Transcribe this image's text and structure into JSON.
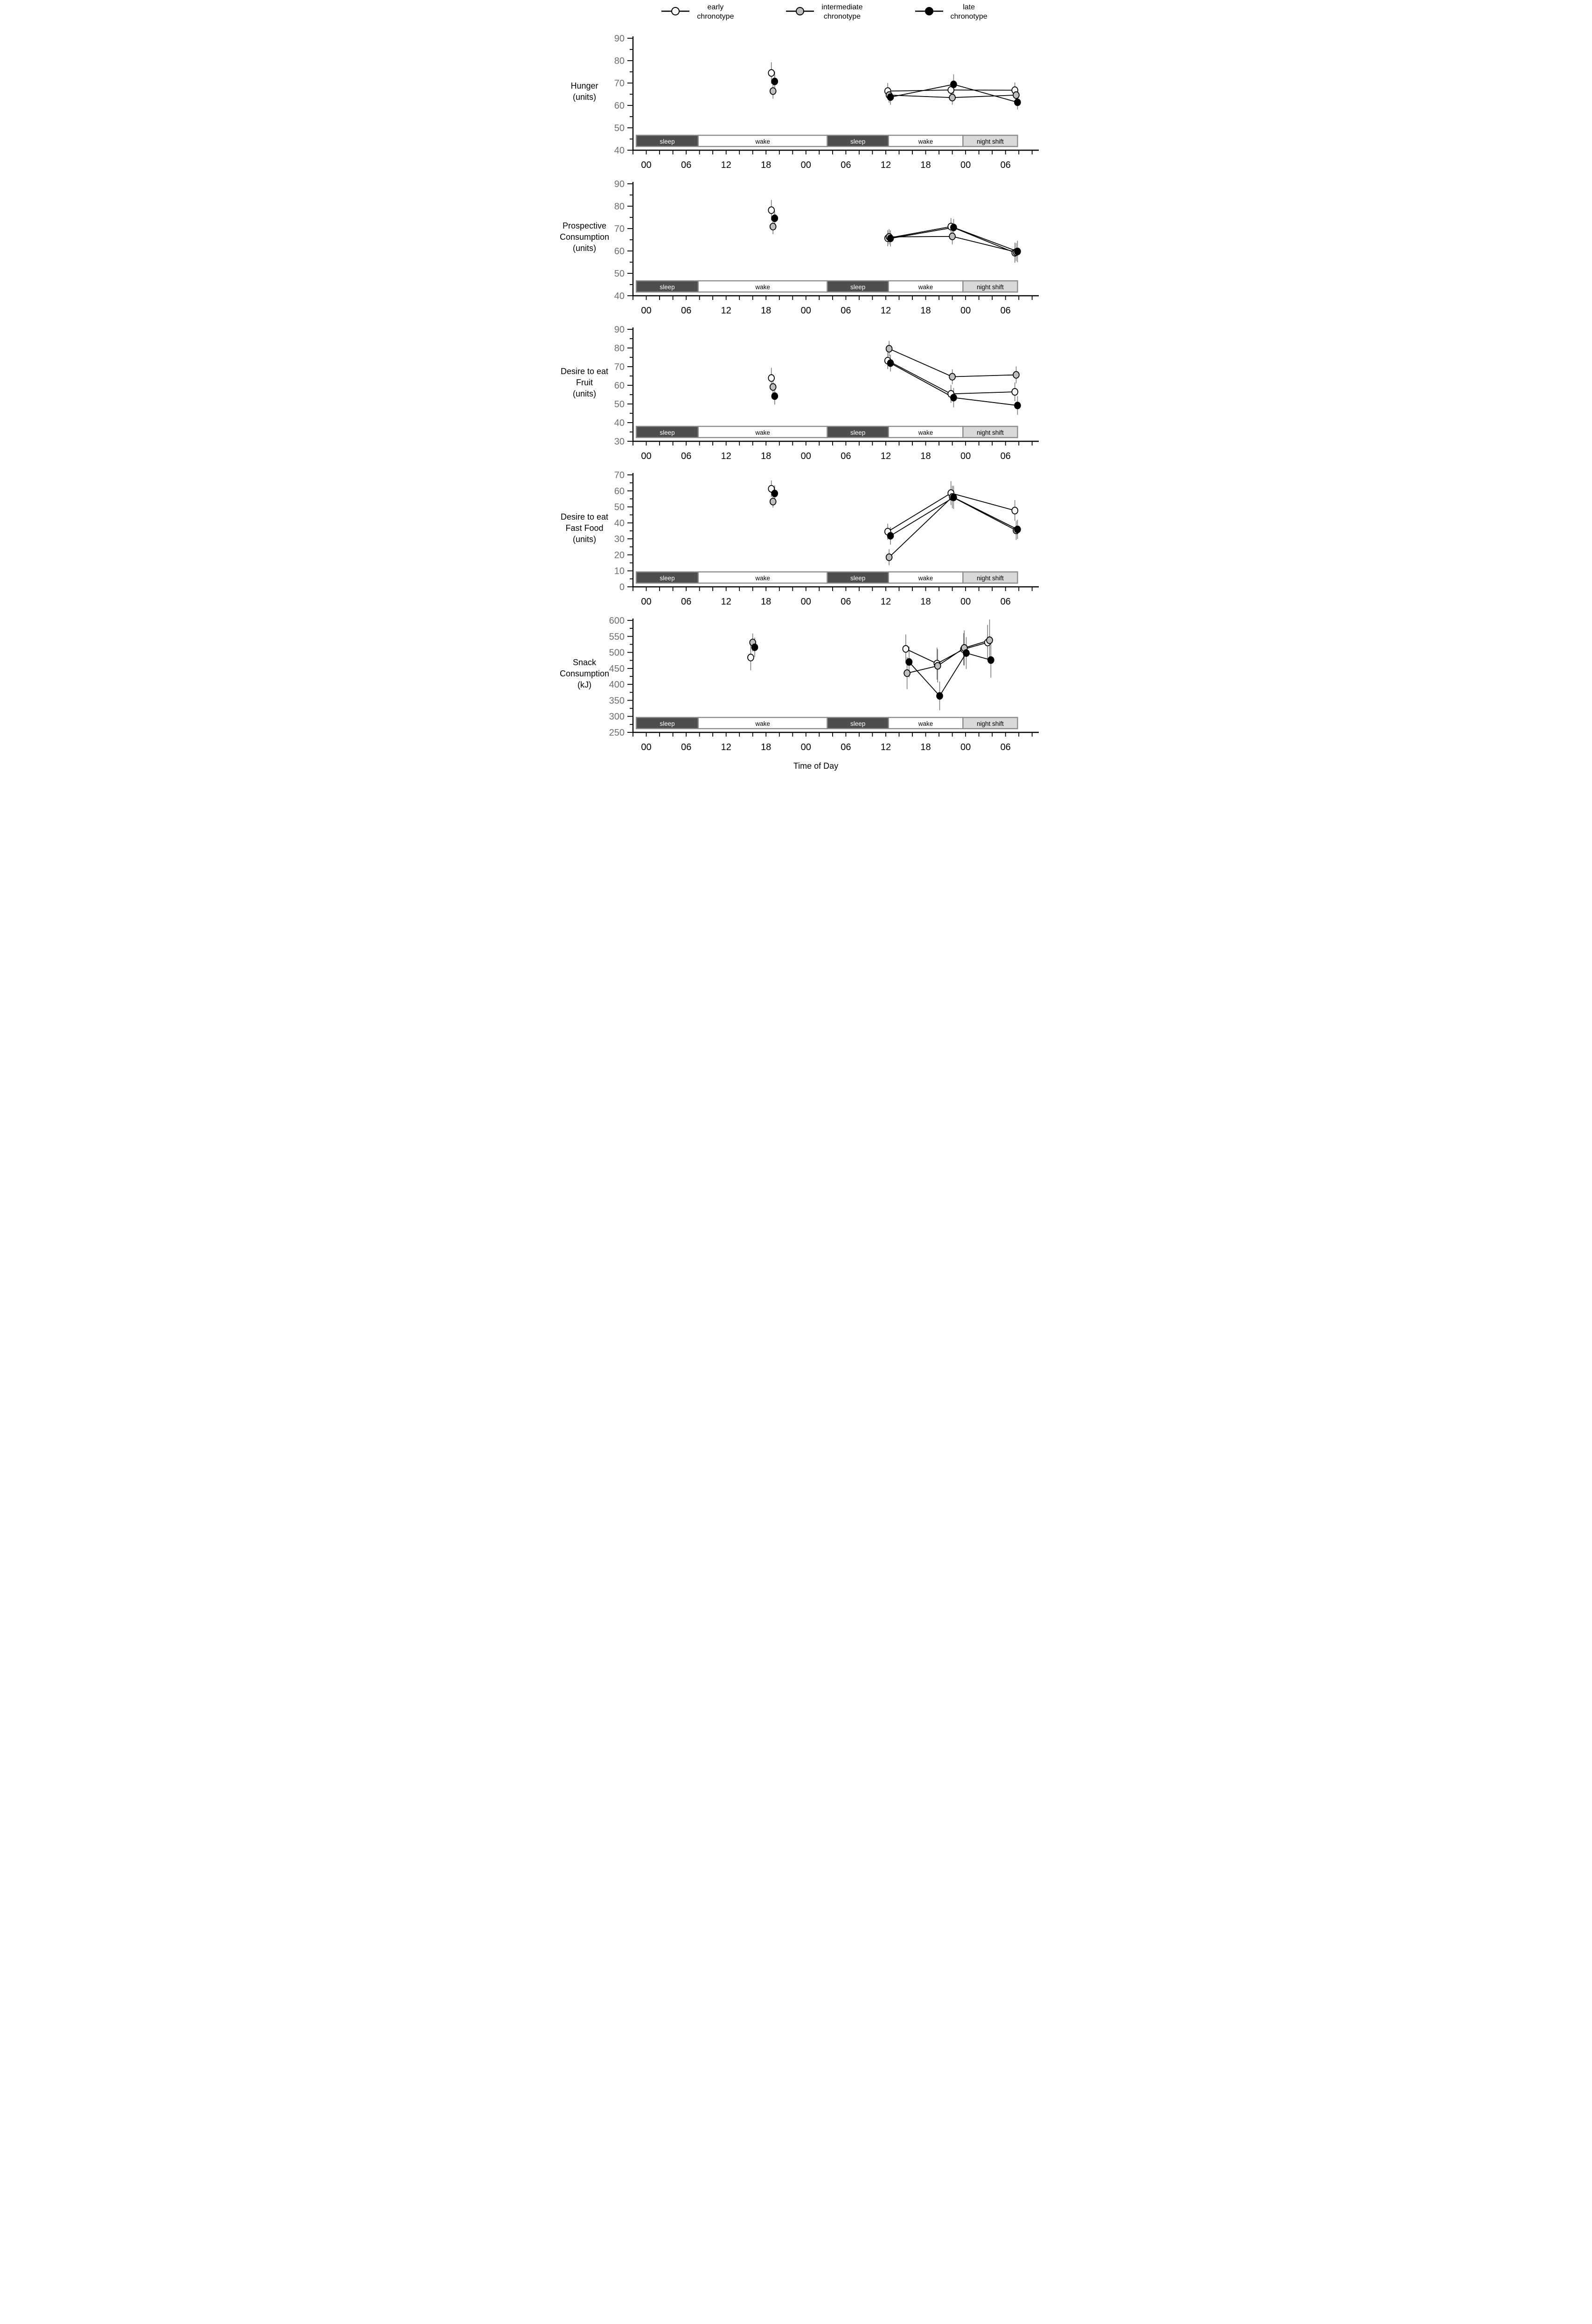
{
  "figure": {
    "xlabel": "Time of Day",
    "x_tick_labels": [
      "00",
      "06",
      "12",
      "18",
      "00",
      "06",
      "12",
      "18",
      "00",
      "06"
    ],
    "x_tick_hours": [
      0,
      6,
      12,
      18,
      24,
      30,
      36,
      42,
      48,
      54
    ],
    "xlim": [
      -2,
      59
    ],
    "x_minor_step": 2,
    "axis_color": "#000000",
    "tick_label_color": "#6e6e6e",
    "error_bar_color": "#7d7d7d",
    "legend": [
      {
        "id": "early",
        "line1": "early",
        "line2": "chronotype",
        "fill": "#ffffff"
      },
      {
        "id": "intermediate",
        "line1": "intermediate",
        "line2": "chronotype",
        "fill": "#bfbfbf"
      },
      {
        "id": "late",
        "line1": "late",
        "line2": "chronotype",
        "fill": "#000000"
      }
    ],
    "periods": [
      {
        "label": "sleep",
        "kind": "sleep",
        "start": -1.5,
        "end": 7.8
      },
      {
        "label": "wake",
        "kind": "wake",
        "start": 7.8,
        "end": 27.2
      },
      {
        "label": "sleep",
        "kind": "sleep",
        "start": 27.2,
        "end": 36.4
      },
      {
        "label": "wake",
        "kind": "wake",
        "start": 36.4,
        "end": 47.6
      },
      {
        "label": "night shift",
        "kind": "night",
        "start": 47.6,
        "end": 55.8
      }
    ],
    "period_styles": {
      "sleep": {
        "fill": "#4d4d4d",
        "text": "#ffffff"
      },
      "wake": {
        "fill": "#ffffff",
        "text": "#000000"
      },
      "night": {
        "fill": "#d9d9d9",
        "text": "#000000"
      }
    }
  },
  "chart_data": [
    {
      "type": "line",
      "id": "hunger",
      "title": [
        "Hunger",
        "(units)"
      ],
      "ylim": [
        40,
        90
      ],
      "ymajor": 10,
      "yminor": 5,
      "series": [
        {
          "name": "early chronotype",
          "fill": "#ffffff",
          "points": [
            [
              18.8,
              74.5,
              4.8
            ],
            [
              36.3,
              66.4,
              3.6
            ],
            [
              45.8,
              66.9,
              3.4
            ],
            [
              55.4,
              66.8,
              3.4
            ]
          ],
          "connect_from": 1
        },
        {
          "name": "intermediate chronotype",
          "fill": "#bfbfbf",
          "points": [
            [
              19.05,
              66.4,
              3.4
            ],
            [
              36.5,
              64.6,
              3.4
            ],
            [
              46.0,
              63.5,
              3.2
            ],
            [
              55.6,
              64.6,
              3.4
            ]
          ],
          "connect_from": 1
        },
        {
          "name": "late chronotype",
          "fill": "#000000",
          "points": [
            [
              19.3,
              70.7,
              4.5
            ],
            [
              36.7,
              63.7,
              3.4
            ],
            [
              46.2,
              69.4,
              4.5
            ],
            [
              55.8,
              61.4,
              3.2
            ]
          ],
          "connect_from": 1
        }
      ]
    },
    {
      "type": "line",
      "id": "prospective-consumption",
      "title": [
        "Prospective",
        "Consumption",
        "(units)"
      ],
      "ylim": [
        40,
        90
      ],
      "ymajor": 10,
      "yminor": 5,
      "series": [
        {
          "name": "early chronotype",
          "fill": "#ffffff",
          "points": [
            [
              18.8,
              78.2,
              4.6
            ],
            [
              36.3,
              65.7,
              3.6
            ],
            [
              45.8,
              70.9,
              3.8
            ],
            [
              55.4,
              59.2,
              4.5
            ]
          ],
          "connect_from": 1
        },
        {
          "name": "intermediate chronotype",
          "fill": "#bfbfbf",
          "points": [
            [
              19.05,
              70.9,
              3.4
            ],
            [
              36.5,
              66.3,
              3.4
            ],
            [
              46.0,
              66.5,
              3.6
            ],
            [
              55.6,
              59.5,
              4.0
            ]
          ],
          "connect_from": 1
        },
        {
          "name": "late chronotype",
          "fill": "#000000",
          "points": [
            [
              19.3,
              74.6,
              3.2
            ],
            [
              36.7,
              65.6,
              3.6
            ],
            [
              46.2,
              70.5,
              3.8
            ],
            [
              55.8,
              59.8,
              4.8
            ]
          ],
          "connect_from": 1
        }
      ]
    },
    {
      "type": "line",
      "id": "desire-fruit",
      "title": [
        "Desire to eat",
        "Fruit",
        "(units)"
      ],
      "ylim": [
        30,
        90
      ],
      "ymajor": 10,
      "yminor": 5,
      "series": [
        {
          "name": "early chronotype",
          "fill": "#ffffff",
          "points": [
            [
              18.8,
              63.9,
              5.5
            ],
            [
              36.3,
              73.2,
              4.5
            ],
            [
              45.8,
              55.4,
              4.8
            ],
            [
              55.4,
              56.5,
              5.0
            ]
          ],
          "connect_from": 1
        },
        {
          "name": "intermediate chronotype",
          "fill": "#bfbfbf",
          "points": [
            [
              19.05,
              59.1,
              3.6
            ],
            [
              36.5,
              79.6,
              4.2
            ],
            [
              46.0,
              64.6,
              4.0
            ],
            [
              55.6,
              65.6,
              4.5
            ]
          ],
          "connect_from": 1
        },
        {
          "name": "late chronotype",
          "fill": "#000000",
          "points": [
            [
              19.3,
              54.2,
              4.5
            ],
            [
              36.7,
              71.9,
              4.5
            ],
            [
              46.2,
              53.4,
              5.2
            ],
            [
              55.8,
              49.2,
              5.0
            ]
          ],
          "connect_from": 1
        }
      ]
    },
    {
      "type": "line",
      "id": "desire-fast-food",
      "title": [
        "Desire to eat",
        "Fast Food",
        "(units)"
      ],
      "ylim": [
        0,
        70
      ],
      "ymajor": 10,
      "yminor": 5,
      "series": [
        {
          "name": "early chronotype",
          "fill": "#ffffff",
          "points": [
            [
              18.8,
              61.3,
              5.2
            ],
            [
              36.3,
              34.5,
              5.0
            ],
            [
              45.8,
              58.6,
              7.5
            ],
            [
              55.4,
              47.7,
              6.5
            ]
          ],
          "connect_from": 1
        },
        {
          "name": "intermediate chronotype",
          "fill": "#bfbfbf",
          "points": [
            [
              19.05,
              53.3,
              3.8
            ],
            [
              36.5,
              18.5,
              5.0
            ],
            [
              46.0,
              56.2,
              7.0
            ],
            [
              55.6,
              35.3,
              6.0
            ]
          ],
          "connect_from": 1
        },
        {
          "name": "late chronotype",
          "fill": "#000000",
          "points": [
            [
              19.3,
              58.4,
              5.0
            ],
            [
              36.7,
              31.9,
              5.5
            ],
            [
              46.2,
              55.9,
              7.2
            ],
            [
              55.8,
              35.9,
              6.0
            ]
          ],
          "connect_from": 1
        }
      ]
    },
    {
      "type": "line",
      "id": "snack-consumption",
      "title": [
        "Snack",
        "Consumption",
        "(kJ)"
      ],
      "ylim": [
        250,
        600
      ],
      "ymajor": 50,
      "yminor": 25,
      "series": [
        {
          "name": "early chronotype",
          "fill": "#ffffff",
          "points": [
            [
              15.7,
              484,
              40
            ],
            [
              39.0,
              511,
              45
            ],
            [
              43.7,
              465,
              50
            ],
            [
              47.7,
              510,
              50
            ],
            [
              51.3,
              531,
              55
            ]
          ],
          "connect_from": 1
        },
        {
          "name": "intermediate chronotype",
          "fill": "#bfbfbf",
          "points": [
            [
              16.0,
              531,
              28
            ],
            [
              39.2,
              435,
              50
            ],
            [
              43.8,
              458,
              52
            ],
            [
              47.8,
              514,
              55
            ],
            [
              51.6,
              538,
              65
            ]
          ],
          "connect_from": 1
        },
        {
          "name": "late chronotype",
          "fill": "#000000",
          "points": [
            [
              16.3,
              516,
              30
            ],
            [
              39.5,
              470,
              48
            ],
            [
              44.1,
              364,
              45
            ],
            [
              48.1,
              498,
              50
            ],
            [
              51.8,
              476,
              55
            ]
          ],
          "connect_from": 1
        }
      ]
    }
  ]
}
